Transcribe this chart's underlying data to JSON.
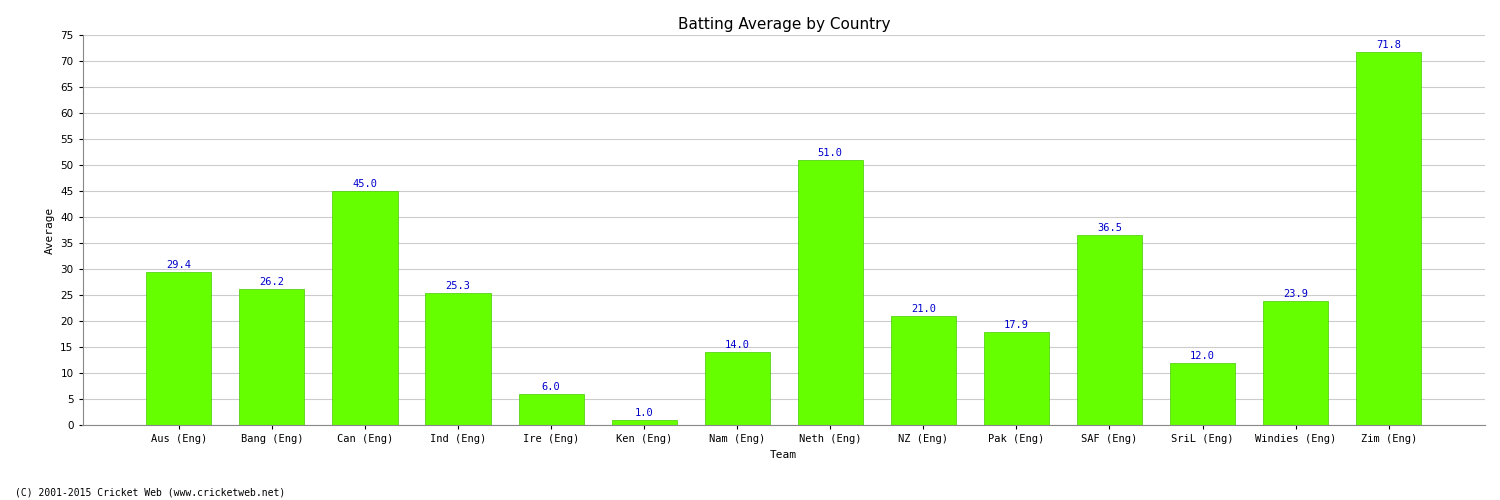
{
  "categories": [
    "Aus (Eng)",
    "Bang (Eng)",
    "Can (Eng)",
    "Ind (Eng)",
    "Ire (Eng)",
    "Ken (Eng)",
    "Nam (Eng)",
    "Neth (Eng)",
    "NZ (Eng)",
    "Pak (Eng)",
    "SAF (Eng)",
    "SriL (Eng)",
    "Windies (Eng)",
    "Zim (Eng)"
  ],
  "values": [
    29.4,
    26.2,
    45.0,
    25.3,
    6.0,
    1.0,
    14.0,
    51.0,
    21.0,
    17.9,
    36.5,
    12.0,
    23.9,
    71.8
  ],
  "bar_color": "#66ff00",
  "bar_edge_color": "#44cc00",
  "label_color": "#0000cc",
  "title": "Batting Average by Country",
  "xlabel": "Team",
  "ylabel": "Average",
  "ylim": [
    0,
    75
  ],
  "yticks": [
    0,
    5,
    10,
    15,
    20,
    25,
    30,
    35,
    40,
    45,
    50,
    55,
    60,
    65,
    70,
    75
  ],
  "grid_color": "#cccccc",
  "background_color": "#ffffff",
  "footer": "(C) 2001-2015 Cricket Web (www.cricketweb.net)",
  "title_fontsize": 11,
  "label_fontsize": 7.5,
  "axis_fontsize": 8,
  "tick_fontsize": 7.5,
  "footer_fontsize": 7
}
